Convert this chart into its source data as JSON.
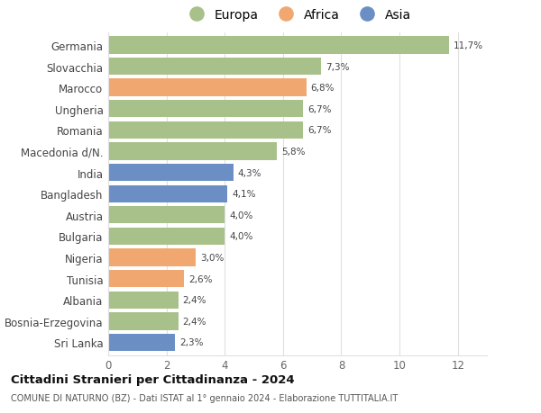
{
  "categories": [
    "Germania",
    "Slovacchia",
    "Marocco",
    "Ungheria",
    "Romania",
    "Macedonia d/N.",
    "India",
    "Bangladesh",
    "Austria",
    "Bulgaria",
    "Nigeria",
    "Tunisia",
    "Albania",
    "Bosnia-Erzegovina",
    "Sri Lanka"
  ],
  "values": [
    11.7,
    7.3,
    6.8,
    6.7,
    6.7,
    5.8,
    4.3,
    4.1,
    4.0,
    4.0,
    3.0,
    2.6,
    2.4,
    2.4,
    2.3
  ],
  "labels": [
    "11,7%",
    "7,3%",
    "6,8%",
    "6,7%",
    "6,7%",
    "5,8%",
    "4,3%",
    "4,1%",
    "4,0%",
    "4,0%",
    "3,0%",
    "2,6%",
    "2,4%",
    "2,4%",
    "2,3%"
  ],
  "continents": [
    "Europa",
    "Europa",
    "Africa",
    "Europa",
    "Europa",
    "Europa",
    "Asia",
    "Asia",
    "Europa",
    "Europa",
    "Africa",
    "Africa",
    "Europa",
    "Europa",
    "Asia"
  ],
  "colors": {
    "Europa": "#a8c08a",
    "Africa": "#f0a870",
    "Asia": "#6b8fc4"
  },
  "legend_labels": [
    "Europa",
    "Africa",
    "Asia"
  ],
  "legend_colors": [
    "#a8c08a",
    "#f0a870",
    "#6b8fc4"
  ],
  "title": "Cittadini Stranieri per Cittadinanza - 2024",
  "subtitle": "COMUNE DI NATURNO (BZ) - Dati ISTAT al 1° gennaio 2024 - Elaborazione TUTTITALIA.IT",
  "xlim": [
    0,
    13
  ],
  "xticks": [
    0,
    2,
    4,
    6,
    8,
    10,
    12
  ],
  "background_color": "#ffffff",
  "grid_color": "#e0e0e0",
  "bar_height": 0.82
}
